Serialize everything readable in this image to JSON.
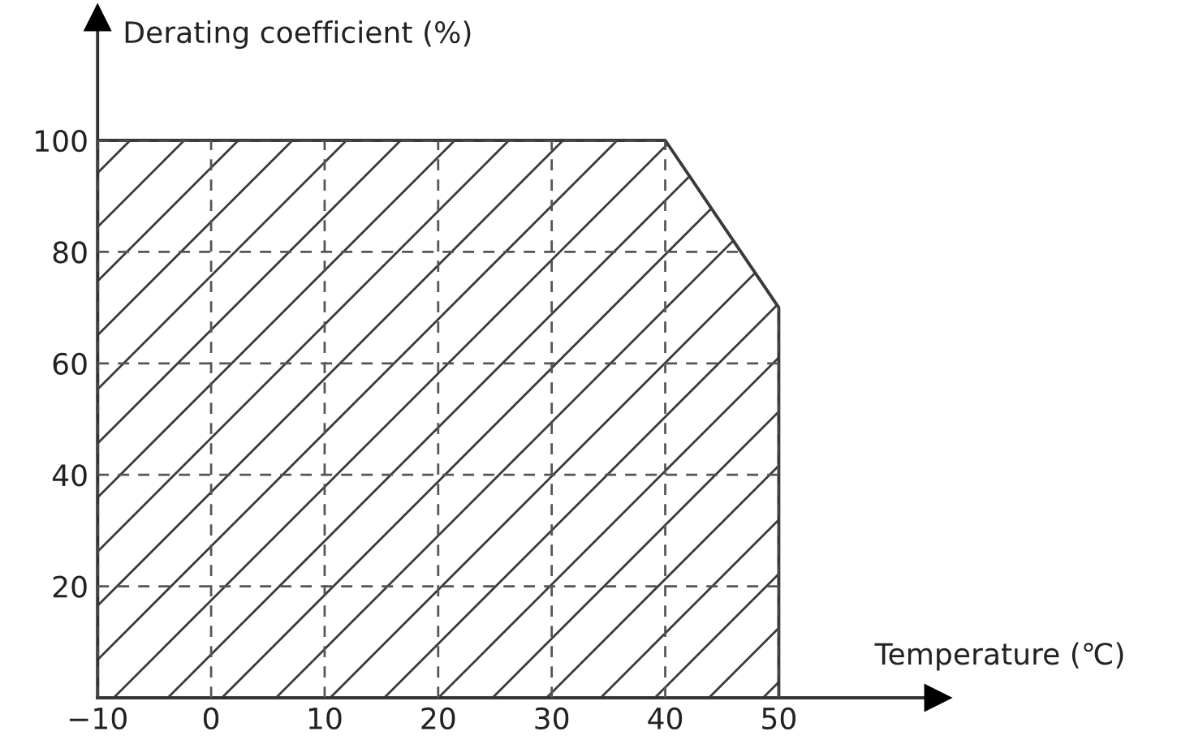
{
  "chart_data": {
    "type": "area",
    "xlabel": "Temperature (℃)",
    "ylabel": "Derating coefficient (%)",
    "x": [
      -10,
      40,
      50
    ],
    "series": [
      {
        "color": "#3a3a3a",
        "values": [
          100,
          100,
          70
        ]
      }
    ],
    "xlim": [
      -10,
      64
    ],
    "ylim": [
      0,
      122
    ],
    "xticks": [
      {
        "value": -10,
        "label": "−10"
      },
      0,
      10,
      20,
      30,
      40,
      50
    ],
    "yticks": [
      20,
      40,
      60,
      80,
      100
    ],
    "grid": true
  }
}
